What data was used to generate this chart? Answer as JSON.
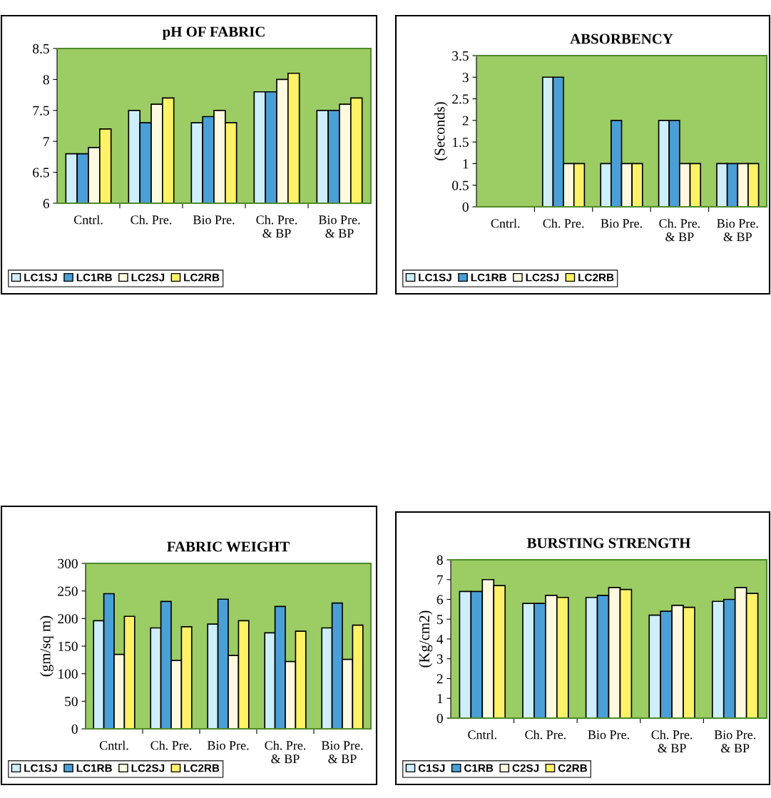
{
  "chart_data": [
    {
      "type": "bar",
      "title": "pH OF FABRIC",
      "categories": [
        "Cntrl.",
        "Ch. Pre.",
        "Bio Pre.",
        "Ch. Pre.\n& BP",
        "Bio Pre.\n& BP"
      ],
      "ylim": [
        6,
        8.5
      ],
      "yticks": [
        6,
        6.5,
        7,
        7.5,
        8,
        8.5
      ],
      "grid": false,
      "legend": "bottom left",
      "series": [
        {
          "name": "LC1SJ",
          "color": "#cdeefa",
          "values": [
            6.8,
            7.5,
            7.3,
            7.8,
            7.5
          ]
        },
        {
          "name": "LC1RB",
          "color": "#4a9fd6",
          "values": [
            6.8,
            7.3,
            7.4,
            7.8,
            7.5
          ]
        },
        {
          "name": "LC2SJ",
          "color": "#fff9e0",
          "values": [
            6.9,
            7.6,
            7.5,
            8.0,
            7.6
          ]
        },
        {
          "name": "LC2RB",
          "color": "#fff266",
          "values": [
            7.2,
            7.7,
            7.3,
            8.1,
            7.7
          ]
        }
      ]
    },
    {
      "type": "bar",
      "title": "ABSORBENCY",
      "ylabel": "(Seconds)",
      "categories": [
        "Cntrl.",
        "Ch. Pre.",
        "Bio Pre.",
        "Ch. Pre.\n& BP",
        "Bio Pre.\n& BP"
      ],
      "ylim": [
        0,
        3.5
      ],
      "yticks": [
        0,
        0.5,
        1,
        1.5,
        2,
        2.5,
        3,
        3.5
      ],
      "grid": false,
      "legend": "bottom left",
      "series": [
        {
          "name": "LC1SJ",
          "color": "#cdeefa",
          "values": [
            0,
            3,
            1,
            2,
            1
          ]
        },
        {
          "name": "LC1RB",
          "color": "#4a9fd6",
          "values": [
            0,
            3,
            2,
            2,
            1
          ]
        },
        {
          "name": "LC2SJ",
          "color": "#fff9e0",
          "values": [
            0,
            1,
            1,
            1,
            1
          ]
        },
        {
          "name": "LC2RB",
          "color": "#fff266",
          "values": [
            0,
            1,
            1,
            1,
            1
          ]
        }
      ]
    },
    {
      "type": "bar",
      "title": "FABRIC WEIGHT",
      "ylabel": "(gm/sq m)",
      "categories": [
        "Cntrl.",
        "Ch. Pre.",
        "Bio Pre.",
        "Ch. Pre.\n& BP",
        "Bio Pre.\n& BP"
      ],
      "ylim": [
        0,
        300
      ],
      "yticks": [
        0,
        50,
        100,
        150,
        200,
        250,
        300
      ],
      "grid": false,
      "legend": "bottom left",
      "series": [
        {
          "name": "LC1SJ",
          "color": "#cdeefa",
          "values": [
            196,
            183,
            190,
            174,
            183
          ]
        },
        {
          "name": "LC1RB",
          "color": "#4a9fd6",
          "values": [
            245,
            231,
            235,
            222,
            228
          ]
        },
        {
          "name": "LC2SJ",
          "color": "#fff9e0",
          "values": [
            135,
            124,
            133,
            122,
            126
          ]
        },
        {
          "name": "LC2RB",
          "color": "#fff266",
          "values": [
            204,
            185,
            196,
            177,
            188
          ]
        }
      ]
    },
    {
      "type": "bar",
      "title": "BURSTING STRENGTH",
      "ylabel": "(Kg/cm2)",
      "categories": [
        "Cntrl.",
        "Ch. Pre.",
        "Bio Pre.",
        "Ch. Pre.\n& BP",
        "Bio Pre.\n& BP"
      ],
      "ylim": [
        0,
        8
      ],
      "yticks": [
        0,
        1,
        2,
        3,
        4,
        5,
        6,
        7,
        8
      ],
      "grid": false,
      "legend": "bottom left",
      "series": [
        {
          "name": "C1SJ",
          "color": "#cdeefa",
          "values": [
            6.4,
            5.8,
            6.1,
            5.2,
            5.9
          ]
        },
        {
          "name": "C1RB",
          "color": "#4a9fd6",
          "values": [
            6.4,
            5.8,
            6.2,
            5.4,
            6.0
          ]
        },
        {
          "name": "C2SJ",
          "color": "#fff9e0",
          "values": [
            7.0,
            6.2,
            6.6,
            5.7,
            6.6
          ]
        },
        {
          "name": "C2RB",
          "color": "#fff266",
          "values": [
            6.7,
            6.1,
            6.5,
            5.6,
            6.3
          ]
        }
      ]
    }
  ]
}
